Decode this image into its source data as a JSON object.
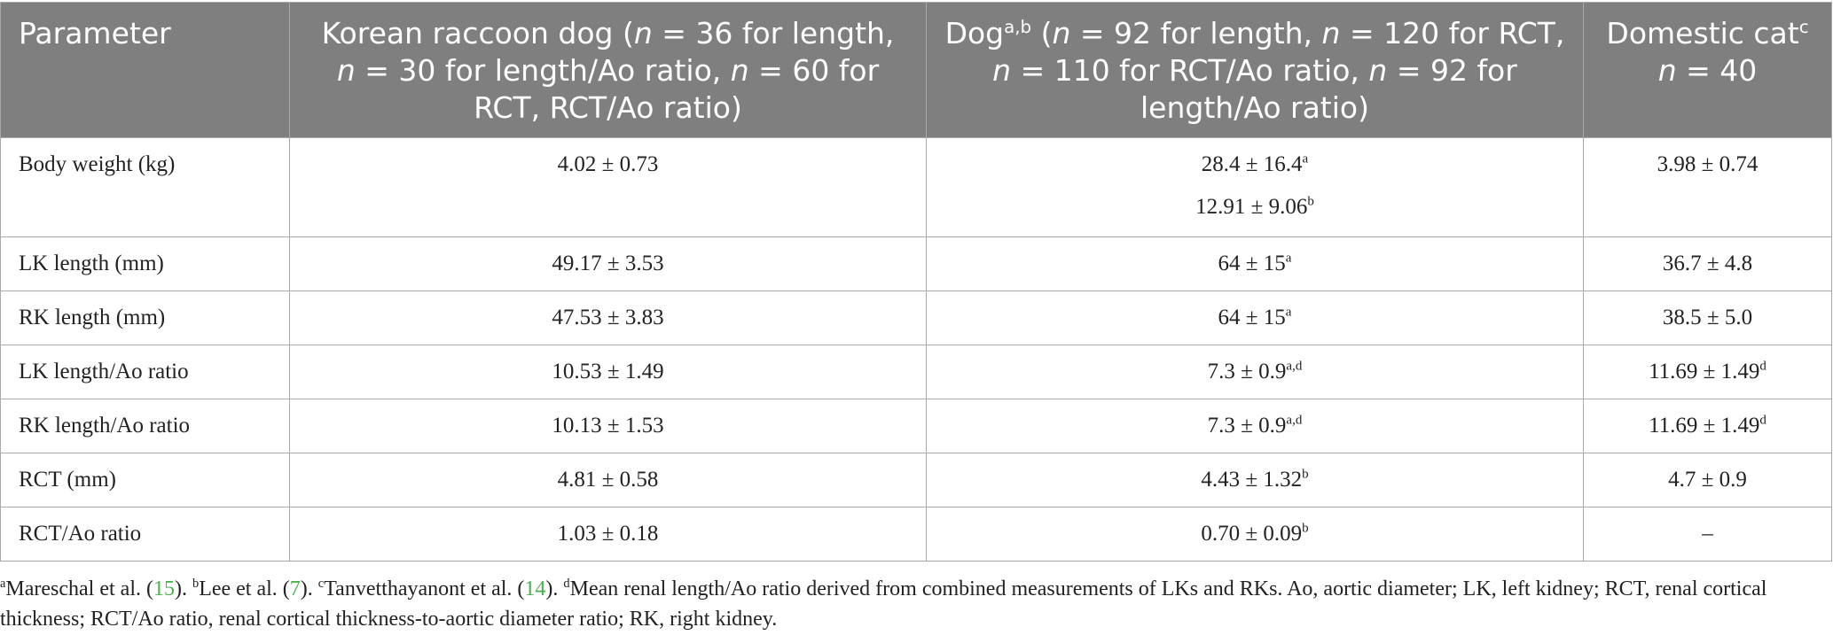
{
  "table": {
    "headers": {
      "parameter": "Parameter",
      "raccoon": {
        "name": "Korean raccoon dog (",
        "n": "n",
        "t1": " = 36 for length, ",
        "t2": " = 30 for length/Ao ratio, ",
        "t3": " = 60 for RCT, RCT/Ao ratio)"
      },
      "dog": {
        "name": "Dog",
        "sup": "a,b",
        "t0": " (",
        "n": "n",
        "t1": " = 92 for length, ",
        "t2": " = 120 for RCT, ",
        "t3": " = 110 for RCT/Ao ratio, ",
        "t4": " = 92 for length/Ao ratio)"
      },
      "cat": {
        "name": "Domestic cat",
        "sup": "c",
        "n": "n",
        "t1": " = 40"
      }
    },
    "rows": [
      {
        "param": "Body weight (kg)",
        "raccoon": "4.02 ± 0.73",
        "dog": "28.4 ± 16.4",
        "dog_sup": "a",
        "dog2": "12.91 ± 9.06",
        "dog2_sup": "b",
        "cat": "3.98 ± 0.74",
        "cat_sup": ""
      },
      {
        "param": "LK length (mm)",
        "raccoon": "49.17 ± 3.53",
        "dog": "64 ± 15",
        "dog_sup": "a",
        "cat": "36.7 ± 4.8",
        "cat_sup": ""
      },
      {
        "param": "RK length (mm)",
        "raccoon": "47.53 ± 3.83",
        "dog": "64 ± 15",
        "dog_sup": "a",
        "cat": "38.5 ± 5.0",
        "cat_sup": ""
      },
      {
        "param": "LK length/Ao ratio",
        "raccoon": "10.53 ± 1.49",
        "dog": "7.3 ± 0.9",
        "dog_sup": "a,d",
        "cat": "11.69 ± 1.49",
        "cat_sup": "d"
      },
      {
        "param": "RK length/Ao ratio",
        "raccoon": "10.13 ± 1.53",
        "dog": "7.3 ± 0.9",
        "dog_sup": "a,d",
        "cat": "11.69 ± 1.49",
        "cat_sup": "d"
      },
      {
        "param": "RCT (mm)",
        "raccoon": "4.81 ± 0.58",
        "dog": "4.43 ± 1.32",
        "dog_sup": "b",
        "cat": "4.7 ± 0.9",
        "cat_sup": ""
      },
      {
        "param": "RCT/Ao ratio",
        "raccoon": "1.03 ± 0.18",
        "dog": "0.70 ± 0.09",
        "dog_sup": "b",
        "cat": "–",
        "cat_sup": ""
      }
    ]
  },
  "footnote": {
    "a_mark": "a",
    "a_text": "Mareschal et al. (",
    "a_ref": "15",
    "a_end": "). ",
    "b_mark": "b",
    "b_text": "Lee et al. (",
    "b_ref": "7",
    "b_end": "). ",
    "c_mark": "c",
    "c_text": "Tanvetthayanont et al. (",
    "c_ref": "14",
    "c_end": "). ",
    "d_mark": "d",
    "d_text": "Mean renal length/Ao ratio derived from combined measurements of LKs and RKs. Ao, aortic diameter; LK, left kidney; RCT, renal cortical thickness; RCT/Ao ratio, renal cortical thickness-to-aortic diameter ratio; RK, right kidney."
  },
  "colors": {
    "header_bg": "#7f7f7f",
    "header_text": "#ffffff",
    "border": "#a9a9a9",
    "reference_link": "#4caf50"
  }
}
